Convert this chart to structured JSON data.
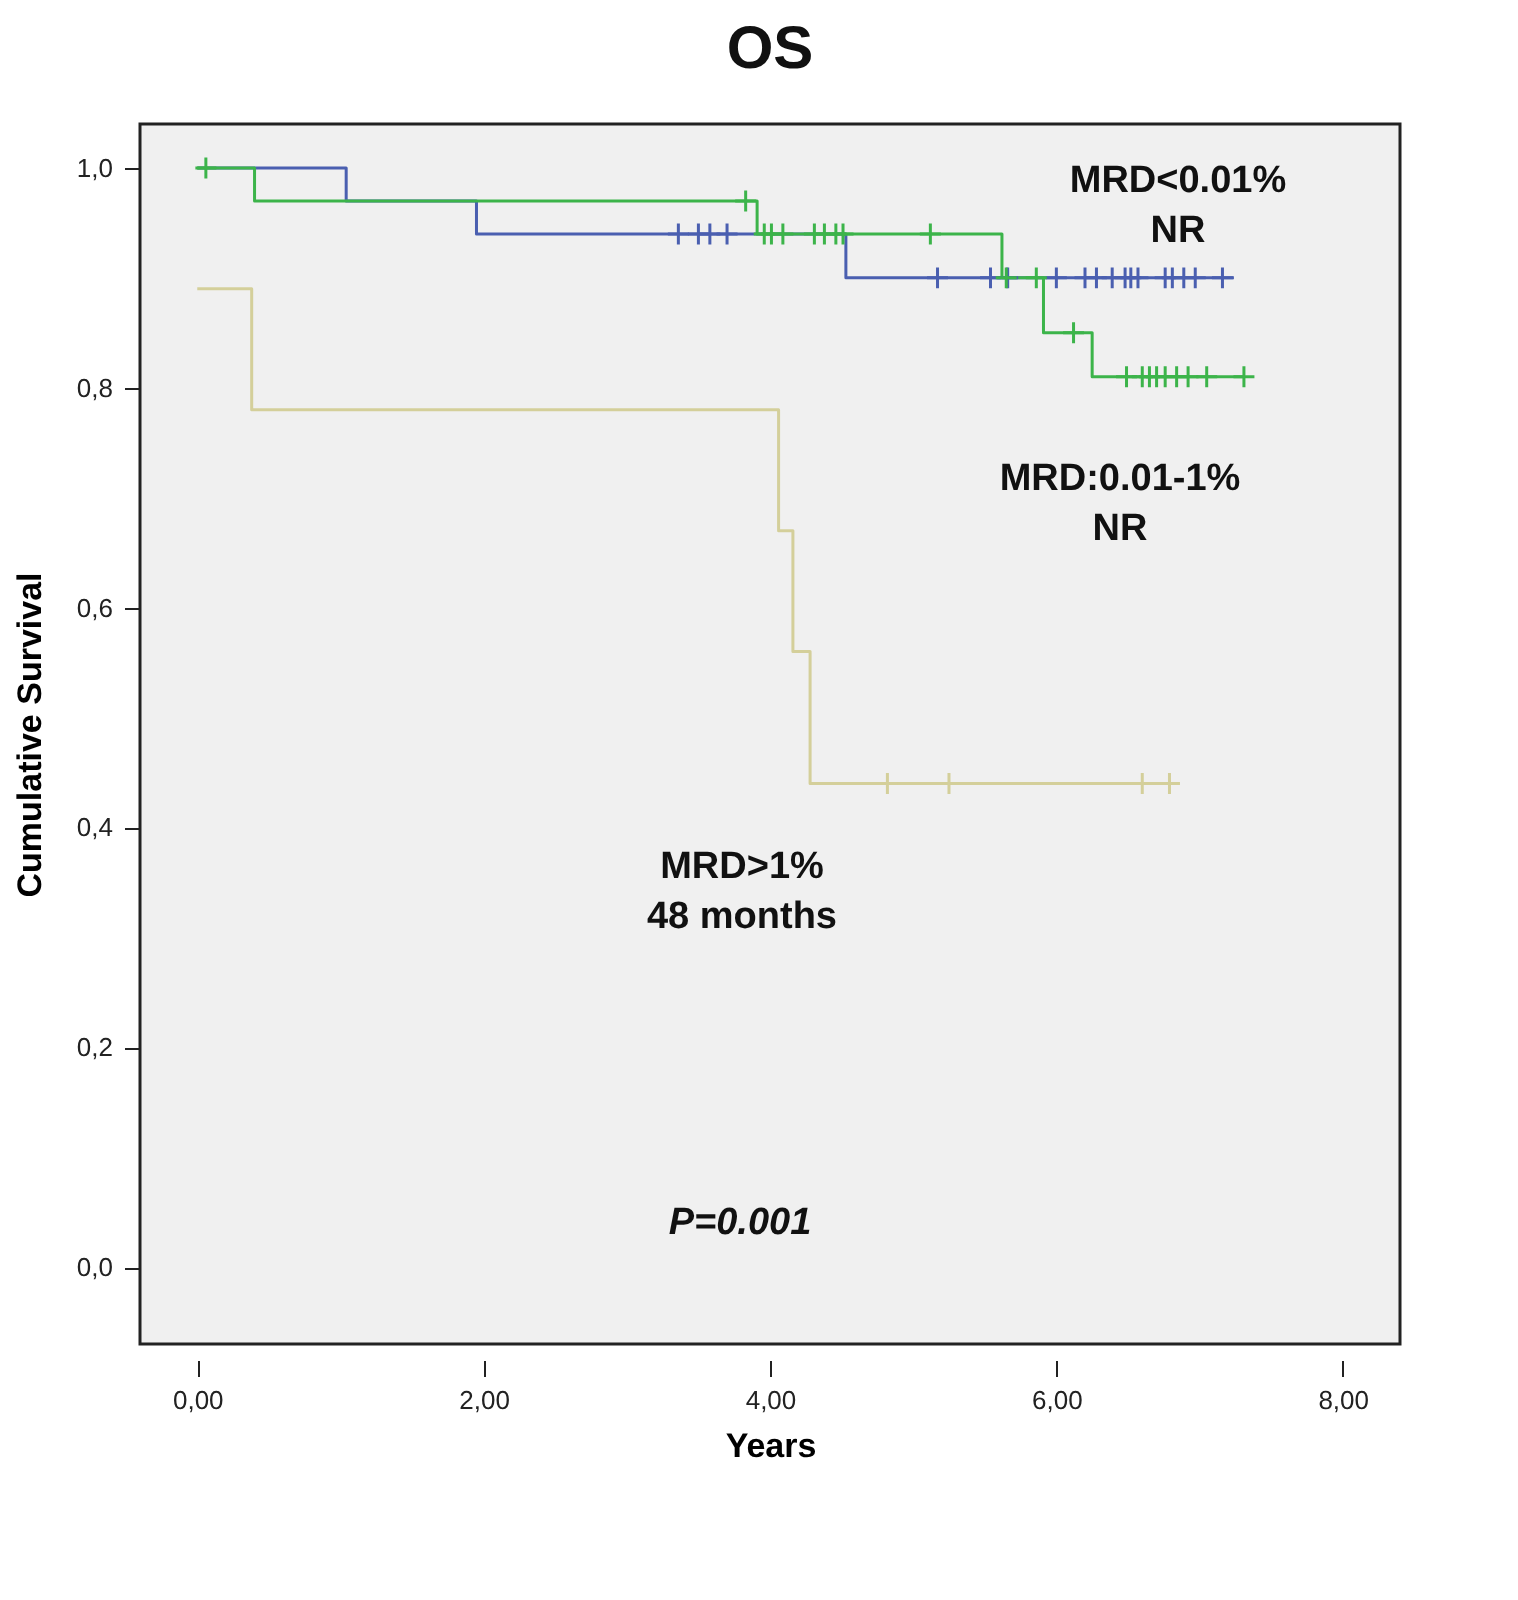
{
  "chart_data": {
    "type": "step",
    "title": "OS",
    "xlabel": "Years",
    "ylabel": "Cumulative Survival",
    "xlim": [
      -0.4,
      8.4
    ],
    "ylim": [
      -0.07,
      1.04
    ],
    "xticks": [
      {
        "value": 0,
        "label": "0,00"
      },
      {
        "value": 2,
        "label": "2,00"
      },
      {
        "value": 4,
        "label": "4,00"
      },
      {
        "value": 6,
        "label": "6,00"
      },
      {
        "value": 8,
        "label": "8,00"
      }
    ],
    "yticks": [
      {
        "value": 0,
        "label": "0,0"
      },
      {
        "value": 0.2,
        "label": "0,2"
      },
      {
        "value": 0.4,
        "label": "0,4"
      },
      {
        "value": 0.6,
        "label": "0,6"
      },
      {
        "value": 0.8,
        "label": "0,8"
      },
      {
        "value": 1.0,
        "label": "1,0"
      }
    ],
    "grid": false,
    "line_style": "solid",
    "series": [
      {
        "color": "#4a5fb0",
        "x": [
          0,
          1.04,
          1.95,
          4.53,
          7.24
        ],
        "values": [
          1.0,
          0.97,
          0.94,
          0.9,
          0.9
        ]
      },
      {
        "color": "#3cb44a",
        "x": [
          0,
          0.4,
          3.91,
          5.62,
          5.91,
          6.25,
          7.31
        ],
        "values": [
          1.0,
          0.97,
          0.94,
          0.9,
          0.85,
          0.81,
          0.81
        ]
      },
      {
        "color": "#d4cf9a",
        "x": [
          0,
          0.38,
          4.06,
          4.16,
          4.28,
          6.79
        ],
        "values": [
          0.89,
          0.78,
          0.67,
          0.56,
          0.44,
          0.44
        ]
      },
      {
        "type": "scatter",
        "marker": "cross",
        "color": "#4a5fb0",
        "x": [
          3.36,
          3.5,
          3.58,
          3.7,
          5.17,
          5.54,
          5.66,
          6.0,
          6.2,
          6.28,
          6.39,
          6.48,
          6.52,
          6.57,
          6.76,
          6.81,
          6.89,
          6.97,
          7.16
        ],
        "values": [
          0.94,
          0.94,
          0.94,
          0.94,
          0.9,
          0.9,
          0.9,
          0.9,
          0.9,
          0.9,
          0.9,
          0.9,
          0.9,
          0.9,
          0.9,
          0.9,
          0.9,
          0.9,
          0.9
        ]
      },
      {
        "type": "scatter",
        "marker": "cross",
        "color": "#3cb44a",
        "x": [
          0.06,
          3.83,
          3.96,
          4.01,
          4.09,
          4.31,
          4.38,
          4.46,
          4.51,
          5.12,
          5.65,
          5.86,
          6.12,
          6.49,
          6.6,
          6.65,
          6.7,
          6.76,
          6.84,
          6.92,
          7.05,
          7.31
        ],
        "values": [
          1.0,
          0.97,
          0.94,
          0.94,
          0.94,
          0.94,
          0.94,
          0.94,
          0.94,
          0.94,
          0.9,
          0.9,
          0.85,
          0.81,
          0.81,
          0.81,
          0.81,
          0.81,
          0.81,
          0.81,
          0.81,
          0.81
        ]
      },
      {
        "type": "scatter",
        "marker": "cross",
        "color": "#d4cf9a",
        "x": [
          4.82,
          5.25,
          6.6,
          6.79
        ],
        "values": [
          0.44,
          0.44,
          0.44,
          0.44
        ]
      }
    ],
    "annotations": [
      "MRD<0.01%\nNR",
      "MRD:0.01-1%\nNR",
      "MRD>1%\n48 months",
      "P=0.001"
    ]
  }
}
